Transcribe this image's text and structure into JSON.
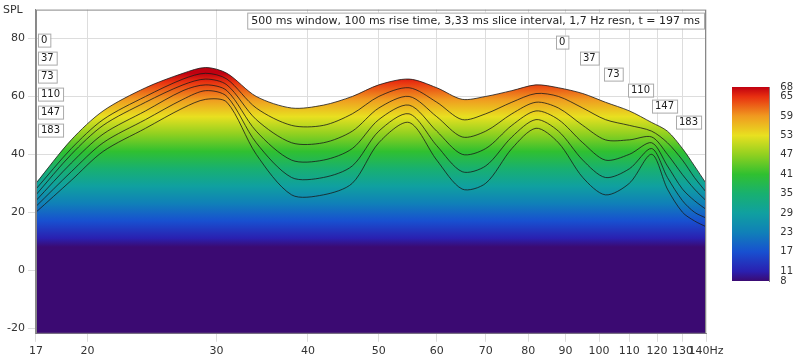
{
  "chart_data": {
    "type": "waterfall",
    "title": "500 ms window, 100 ms rise time, 3,33 ms slice interval, 1,7 Hz resn, t = 197 ms",
    "y_label": "SPL",
    "x": [
      17,
      19,
      21,
      24,
      27,
      29,
      31,
      34,
      38,
      42,
      46,
      50,
      55,
      60,
      65,
      70,
      76,
      82,
      88,
      95,
      102,
      110,
      118,
      124,
      130,
      135,
      140
    ],
    "series": [
      {
        "name": "0",
        "values": [
          30,
          45,
          55,
          63,
          68,
          70,
          68,
          60,
          56,
          57,
          60,
          64,
          66,
          63,
          59,
          60,
          62,
          64,
          63,
          61,
          58,
          55,
          51,
          48,
          42,
          36,
          30
        ]
      },
      {
        "name": "37",
        "values": [
          28,
          42,
          52,
          60,
          66,
          68,
          66,
          56,
          50,
          50,
          54,
          60,
          63,
          58,
          52,
          54,
          58,
          61,
          60,
          56,
          52,
          50,
          48,
          44,
          38,
          32,
          27
        ]
      },
      {
        "name": "73",
        "values": [
          26,
          40,
          50,
          58,
          64,
          66,
          64,
          52,
          44,
          44,
          48,
          56,
          60,
          53,
          46,
          48,
          54,
          58,
          56,
          50,
          45,
          45,
          46,
          40,
          33,
          28,
          24
        ]
      },
      {
        "name": "110",
        "values": [
          24,
          37,
          47,
          55,
          62,
          64,
          62,
          48,
          38,
          38,
          42,
          52,
          57,
          48,
          40,
          42,
          50,
          55,
          52,
          44,
          38,
          40,
          44,
          36,
          28,
          24,
          21
        ]
      },
      {
        "name": "147",
        "values": [
          22,
          34,
          44,
          52,
          59,
          62,
          60,
          44,
          32,
          32,
          36,
          48,
          54,
          43,
          34,
          36,
          46,
          52,
          48,
          38,
          32,
          35,
          42,
          32,
          24,
          20,
          18
        ]
      },
      {
        "name": "183",
        "values": [
          20,
          31,
          41,
          49,
          56,
          59,
          58,
          40,
          26,
          26,
          30,
          44,
          51,
          38,
          28,
          30,
          42,
          49,
          44,
          32,
          26,
          30,
          40,
          28,
          20,
          17,
          15
        ]
      }
    ],
    "log": "x",
    "xlim": [
      17,
      140
    ],
    "xticks": [
      17,
      20,
      30,
      40,
      50,
      60,
      70,
      80,
      90,
      100,
      110,
      120,
      130,
      {
        "value": 140,
        "label": "140Hz"
      }
    ],
    "ylim": [
      -22,
      90
    ],
    "yticks": [
      -20,
      0,
      20,
      40,
      60,
      80
    ],
    "grid": true,
    "colorbar_range": [
      8,
      68
    ],
    "colorbar_ticks": [
      8,
      11,
      17,
      23,
      29,
      35,
      41,
      47,
      53,
      59,
      65,
      68
    ]
  }
}
